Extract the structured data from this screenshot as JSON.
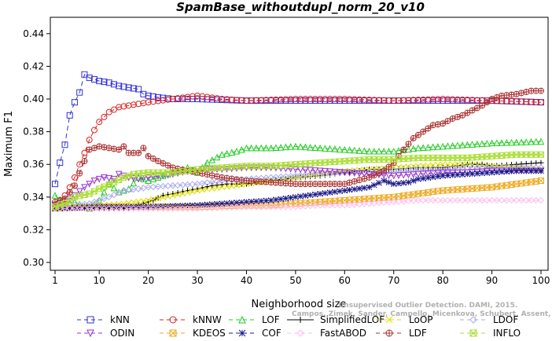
{
  "chart_data": {
    "type": "line",
    "title": "SpamBase_withoutdupl_norm_20_v10",
    "xlabel": "Neighborhood size",
    "ylabel": "Maximum F1",
    "xlim": [
      1,
      100
    ],
    "ylim": [
      0.3,
      0.45
    ],
    "xticks": [
      1,
      10,
      20,
      30,
      40,
      50,
      60,
      70,
      80,
      90,
      100
    ],
    "yticks": [
      0.3,
      0.32,
      0.34,
      0.36,
      0.38,
      0.4,
      0.42,
      0.44
    ],
    "grid": false,
    "legend_placement": "bottom",
    "watermark": [
      "Unsupervised Outlier Detection. DAMI, 2015.",
      "Campos, Zimek, Sander, Campello, Micenkova, Schubert, Assent, Houle"
    ],
    "series": [
      {
        "name": "kNN",
        "color": "#3333dd",
        "marker": "square",
        "dash": "6,4",
        "anchors": [
          [
            1,
            0.348
          ],
          [
            2,
            0.361
          ],
          [
            3,
            0.372
          ],
          [
            4,
            0.39
          ],
          [
            5,
            0.398
          ],
          [
            6,
            0.404
          ],
          [
            7,
            0.415
          ],
          [
            8,
            0.413
          ],
          [
            10,
            0.411
          ],
          [
            12,
            0.41
          ],
          [
            14,
            0.408
          ],
          [
            16,
            0.407
          ],
          [
            18,
            0.406
          ],
          [
            19,
            0.403
          ],
          [
            20,
            0.402
          ],
          [
            22,
            0.401
          ],
          [
            25,
            0.4
          ],
          [
            30,
            0.4
          ],
          [
            40,
            0.399
          ],
          [
            50,
            0.399
          ],
          [
            60,
            0.399
          ],
          [
            70,
            0.399
          ],
          [
            80,
            0.399
          ],
          [
            90,
            0.399
          ],
          [
            100,
            0.398
          ]
        ]
      },
      {
        "name": "kNNW",
        "color": "#dd2222",
        "marker": "circle",
        "dash": "6,4",
        "anchors": [
          [
            1,
            0.335
          ],
          [
            2,
            0.338
          ],
          [
            3,
            0.341
          ],
          [
            4,
            0.346
          ],
          [
            5,
            0.352
          ],
          [
            6,
            0.36
          ],
          [
            7,
            0.367
          ],
          [
            8,
            0.375
          ],
          [
            9,
            0.381
          ],
          [
            10,
            0.386
          ],
          [
            12,
            0.392
          ],
          [
            14,
            0.395
          ],
          [
            16,
            0.396
          ],
          [
            18,
            0.397
          ],
          [
            20,
            0.398
          ],
          [
            25,
            0.4
          ],
          [
            30,
            0.402
          ],
          [
            35,
            0.4
          ],
          [
            40,
            0.399
          ],
          [
            50,
            0.4
          ],
          [
            60,
            0.4
          ],
          [
            70,
            0.399
          ],
          [
            80,
            0.4
          ],
          [
            90,
            0.399
          ],
          [
            100,
            0.398
          ]
        ]
      },
      {
        "name": "LOF",
        "color": "#22cc22",
        "marker": "triangle",
        "dash": "6,4",
        "anchors": [
          [
            1,
            0.341
          ],
          [
            3,
            0.336
          ],
          [
            5,
            0.337
          ],
          [
            8,
            0.333
          ],
          [
            10,
            0.338
          ],
          [
            12,
            0.348
          ],
          [
            14,
            0.343
          ],
          [
            16,
            0.345
          ],
          [
            18,
            0.352
          ],
          [
            20,
            0.35
          ],
          [
            25,
            0.355
          ],
          [
            28,
            0.358
          ],
          [
            30,
            0.355
          ],
          [
            32,
            0.361
          ],
          [
            35,
            0.366
          ],
          [
            38,
            0.368
          ],
          [
            40,
            0.37
          ],
          [
            45,
            0.37
          ],
          [
            50,
            0.371
          ],
          [
            55,
            0.37
          ],
          [
            60,
            0.369
          ],
          [
            65,
            0.368
          ],
          [
            70,
            0.368
          ],
          [
            75,
            0.37
          ],
          [
            80,
            0.371
          ],
          [
            85,
            0.372
          ],
          [
            90,
            0.373
          ],
          [
            100,
            0.374
          ]
        ]
      },
      {
        "name": "SimplifiedLOF",
        "color": "#000000",
        "marker": "plus",
        "dash": "",
        "anchors": [
          [
            1,
            0.333
          ],
          [
            10,
            0.333
          ],
          [
            15,
            0.333
          ],
          [
            17,
            0.334
          ],
          [
            19,
            0.336
          ],
          [
            21,
            0.338
          ],
          [
            23,
            0.341
          ],
          [
            25,
            0.342
          ],
          [
            28,
            0.344
          ],
          [
            30,
            0.345
          ],
          [
            33,
            0.347
          ],
          [
            36,
            0.348
          ],
          [
            40,
            0.348
          ],
          [
            42,
            0.349
          ],
          [
            45,
            0.35
          ],
          [
            48,
            0.351
          ],
          [
            50,
            0.352
          ],
          [
            55,
            0.353
          ],
          [
            60,
            0.355
          ],
          [
            63,
            0.356
          ],
          [
            65,
            0.357
          ],
          [
            70,
            0.357
          ],
          [
            75,
            0.358
          ],
          [
            80,
            0.358
          ],
          [
            85,
            0.36
          ],
          [
            88,
            0.36
          ],
          [
            90,
            0.359
          ],
          [
            95,
            0.36
          ],
          [
            100,
            0.361
          ]
        ]
      },
      {
        "name": "LoOP",
        "color": "#dddd00",
        "marker": "x",
        "dash": "6,4",
        "anchors": [
          [
            1,
            0.334
          ],
          [
            10,
            0.335
          ],
          [
            15,
            0.336
          ],
          [
            20,
            0.338
          ],
          [
            25,
            0.341
          ],
          [
            30,
            0.344
          ],
          [
            35,
            0.346
          ],
          [
            40,
            0.348
          ],
          [
            45,
            0.35
          ],
          [
            50,
            0.352
          ],
          [
            55,
            0.354
          ],
          [
            60,
            0.356
          ],
          [
            65,
            0.357
          ],
          [
            70,
            0.358
          ],
          [
            75,
            0.359
          ],
          [
            80,
            0.36
          ],
          [
            85,
            0.36
          ],
          [
            90,
            0.359
          ],
          [
            95,
            0.358
          ],
          [
            100,
            0.357
          ]
        ]
      },
      {
        "name": "LDOF",
        "color": "#aaaaee",
        "marker": "diamond",
        "dash": "6,4",
        "anchors": [
          [
            1,
            0.334
          ],
          [
            8,
            0.336
          ],
          [
            12,
            0.34
          ],
          [
            15,
            0.344
          ],
          [
            18,
            0.345
          ],
          [
            20,
            0.346
          ],
          [
            25,
            0.347
          ],
          [
            30,
            0.348
          ],
          [
            35,
            0.35
          ],
          [
            40,
            0.351
          ],
          [
            45,
            0.352
          ],
          [
            50,
            0.353
          ],
          [
            55,
            0.354
          ],
          [
            60,
            0.355
          ],
          [
            65,
            0.355
          ],
          [
            70,
            0.356
          ],
          [
            75,
            0.357
          ],
          [
            80,
            0.357
          ],
          [
            85,
            0.358
          ],
          [
            90,
            0.358
          ],
          [
            95,
            0.358
          ],
          [
            100,
            0.358
          ]
        ]
      },
      {
        "name": "ODIN",
        "color": "#9933cc",
        "marker": "triangle-down",
        "dash": "6,4",
        "anchors": [
          [
            1,
            0.335
          ],
          [
            3,
            0.337
          ],
          [
            5,
            0.341
          ],
          [
            7,
            0.346
          ],
          [
            9,
            0.35
          ],
          [
            11,
            0.352
          ],
          [
            13,
            0.351
          ],
          [
            14,
            0.354
          ],
          [
            16,
            0.352
          ],
          [
            18,
            0.351
          ],
          [
            20,
            0.352
          ],
          [
            25,
            0.354
          ],
          [
            30,
            0.357
          ],
          [
            35,
            0.357
          ],
          [
            40,
            0.358
          ],
          [
            45,
            0.358
          ],
          [
            50,
            0.357
          ],
          [
            55,
            0.356
          ],
          [
            60,
            0.355
          ],
          [
            65,
            0.354
          ],
          [
            70,
            0.353
          ],
          [
            75,
            0.354
          ],
          [
            80,
            0.355
          ],
          [
            85,
            0.355
          ],
          [
            90,
            0.356
          ],
          [
            95,
            0.356
          ],
          [
            100,
            0.356
          ]
        ]
      },
      {
        "name": "KDEOS",
        "color": "#eeaa22",
        "marker": "square-x",
        "dash": "6,4",
        "anchors": [
          [
            1,
            0.333
          ],
          [
            10,
            0.334
          ],
          [
            20,
            0.334
          ],
          [
            30,
            0.334
          ],
          [
            40,
            0.335
          ],
          [
            45,
            0.335
          ],
          [
            50,
            0.336
          ],
          [
            55,
            0.337
          ],
          [
            60,
            0.338
          ],
          [
            65,
            0.339
          ],
          [
            70,
            0.34
          ],
          [
            75,
            0.342
          ],
          [
            80,
            0.344
          ],
          [
            85,
            0.345
          ],
          [
            90,
            0.346
          ],
          [
            95,
            0.348
          ],
          [
            100,
            0.35
          ]
        ]
      },
      {
        "name": "COF",
        "color": "#1a1a88",
        "marker": "star",
        "dash": "6,4",
        "anchors": [
          [
            1,
            0.333
          ],
          [
            10,
            0.334
          ],
          [
            20,
            0.334
          ],
          [
            30,
            0.335
          ],
          [
            35,
            0.336
          ],
          [
            40,
            0.337
          ],
          [
            45,
            0.338
          ],
          [
            50,
            0.34
          ],
          [
            55,
            0.342
          ],
          [
            60,
            0.344
          ],
          [
            65,
            0.346
          ],
          [
            68,
            0.35
          ],
          [
            70,
            0.348
          ],
          [
            73,
            0.349
          ],
          [
            75,
            0.351
          ],
          [
            80,
            0.353
          ],
          [
            85,
            0.354
          ],
          [
            90,
            0.355
          ],
          [
            95,
            0.356
          ],
          [
            100,
            0.356
          ]
        ]
      },
      {
        "name": "FastABOD",
        "color": "#ffbbee",
        "marker": "diamond",
        "dash": "6,4",
        "anchors": [
          [
            1,
            0.333
          ],
          [
            10,
            0.333
          ],
          [
            20,
            0.333
          ],
          [
            30,
            0.333
          ],
          [
            40,
            0.334
          ],
          [
            50,
            0.334
          ],
          [
            55,
            0.335
          ],
          [
            60,
            0.335
          ],
          [
            65,
            0.336
          ],
          [
            70,
            0.337
          ],
          [
            75,
            0.338
          ],
          [
            80,
            0.338
          ],
          [
            85,
            0.338
          ],
          [
            90,
            0.338
          ],
          [
            95,
            0.338
          ],
          [
            100,
            0.338
          ]
        ]
      },
      {
        "name": "LDF",
        "color": "#aa3333",
        "marker": "circle-plus",
        "dash": "6,4",
        "anchors": [
          [
            1,
            0.337
          ],
          [
            3,
            0.339
          ],
          [
            5,
            0.347
          ],
          [
            7,
            0.362
          ],
          [
            8,
            0.369
          ],
          [
            10,
            0.371
          ],
          [
            12,
            0.37
          ],
          [
            14,
            0.369
          ],
          [
            15,
            0.371
          ],
          [
            16,
            0.367
          ],
          [
            18,
            0.367
          ],
          [
            19,
            0.37
          ],
          [
            20,
            0.365
          ],
          [
            22,
            0.362
          ],
          [
            25,
            0.358
          ],
          [
            28,
            0.356
          ],
          [
            30,
            0.355
          ],
          [
            35,
            0.352
          ],
          [
            40,
            0.35
          ],
          [
            45,
            0.349
          ],
          [
            50,
            0.348
          ],
          [
            55,
            0.348
          ],
          [
            60,
            0.348
          ],
          [
            65,
            0.352
          ],
          [
            68,
            0.356
          ],
          [
            70,
            0.361
          ],
          [
            72,
            0.369
          ],
          [
            74,
            0.376
          ],
          [
            76,
            0.38
          ],
          [
            78,
            0.384
          ],
          [
            80,
            0.385
          ],
          [
            82,
            0.388
          ],
          [
            84,
            0.39
          ],
          [
            86,
            0.393
          ],
          [
            88,
            0.396
          ],
          [
            90,
            0.4
          ],
          [
            92,
            0.402
          ],
          [
            95,
            0.403
          ],
          [
            98,
            0.405
          ],
          [
            100,
            0.405
          ]
        ]
      },
      {
        "name": "INFLO",
        "color": "#aadd33",
        "marker": "hourglass",
        "dash": "6,4",
        "anchors": [
          [
            1,
            0.334
          ],
          [
            3,
            0.336
          ],
          [
            5,
            0.34
          ],
          [
            8,
            0.342
          ],
          [
            10,
            0.345
          ],
          [
            13,
            0.349
          ],
          [
            15,
            0.352
          ],
          [
            17,
            0.354
          ],
          [
            20,
            0.355
          ],
          [
            25,
            0.355
          ],
          [
            30,
            0.357
          ],
          [
            35,
            0.358
          ],
          [
            40,
            0.359
          ],
          [
            45,
            0.359
          ],
          [
            50,
            0.36
          ],
          [
            55,
            0.361
          ],
          [
            60,
            0.362
          ],
          [
            65,
            0.363
          ],
          [
            70,
            0.363
          ],
          [
            75,
            0.364
          ],
          [
            80,
            0.364
          ],
          [
            85,
            0.364
          ],
          [
            90,
            0.365
          ],
          [
            95,
            0.366
          ],
          [
            100,
            0.366
          ]
        ]
      }
    ]
  }
}
